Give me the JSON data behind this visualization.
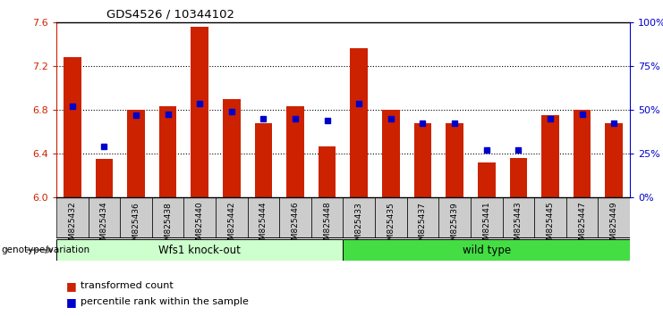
{
  "title": "GDS4526 / 10344102",
  "samples": [
    "GSM825432",
    "GSM825434",
    "GSM825436",
    "GSM825438",
    "GSM825440",
    "GSM825442",
    "GSM825444",
    "GSM825446",
    "GSM825448",
    "GSM825433",
    "GSM825435",
    "GSM825437",
    "GSM825439",
    "GSM825441",
    "GSM825443",
    "GSM825445",
    "GSM825447",
    "GSM825449"
  ],
  "bar_heights": [
    7.28,
    6.35,
    6.8,
    6.83,
    7.56,
    6.9,
    6.68,
    6.83,
    6.47,
    7.36,
    6.8,
    6.68,
    6.68,
    6.32,
    6.36,
    6.75,
    6.8,
    6.68
  ],
  "blue_y": [
    6.83,
    6.47,
    6.75,
    6.76,
    6.86,
    6.78,
    6.72,
    6.72,
    6.7,
    6.86,
    6.72,
    6.68,
    6.68,
    6.43,
    6.43,
    6.72,
    6.76,
    6.68
  ],
  "groups": [
    {
      "label": "Wfs1 knock-out",
      "start": 0,
      "end": 9,
      "color": "#CCFFCC"
    },
    {
      "label": "wild type",
      "start": 9,
      "end": 18,
      "color": "#44DD44"
    }
  ],
  "group_label_prefix": "genotype/variation",
  "ymin": 6.0,
  "ymax": 7.6,
  "yticks_left": [
    6.0,
    6.4,
    6.8,
    7.2,
    7.6
  ],
  "yticks_right_vals": [
    0,
    25,
    50,
    75,
    100
  ],
  "yticks_right_labels": [
    "0%",
    "25%",
    "50%",
    "75%",
    "100%"
  ],
  "bar_color": "#CC2200",
  "blue_color": "#0000CC",
  "legend_items": [
    "transformed count",
    "percentile rank within the sample"
  ]
}
